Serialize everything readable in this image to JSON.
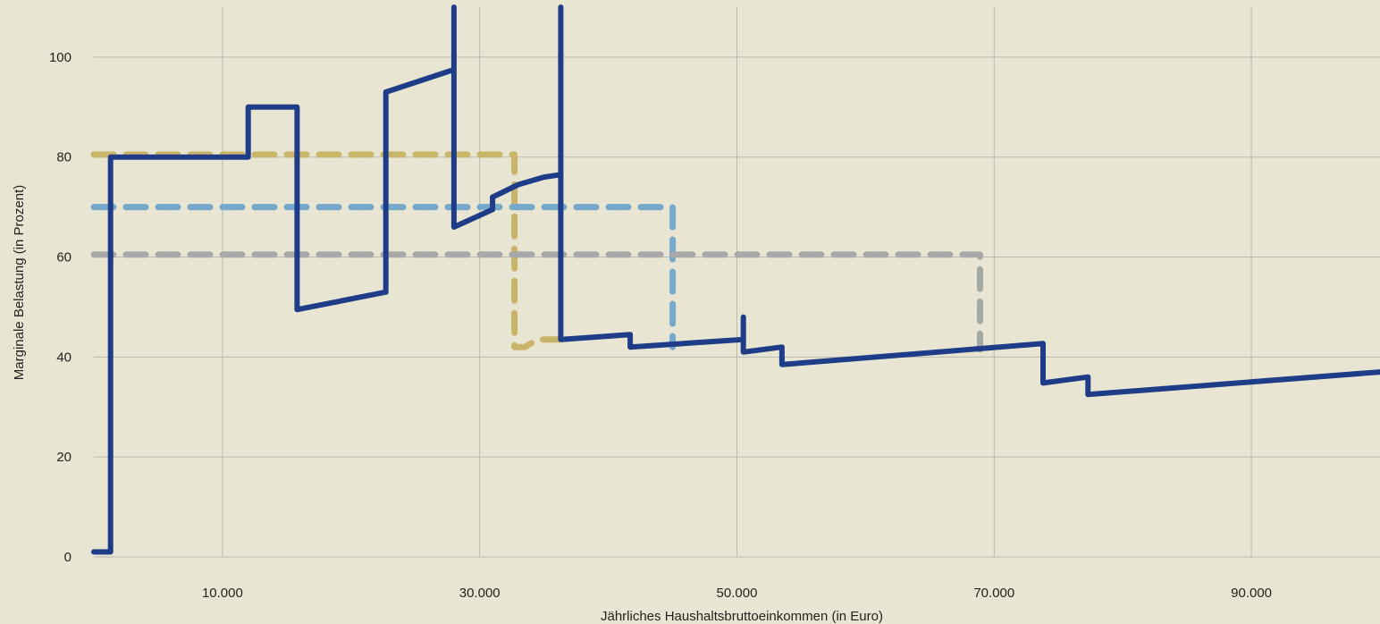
{
  "chart_data": {
    "type": "line",
    "xlabel": "Jährliches Haushaltsbruttoeinkommen (in Euro)",
    "ylabel": "Marginale Belastung (in Prozent)",
    "xlim": [
      0,
      100000
    ],
    "ylim": [
      0,
      110
    ],
    "x_ticks": [
      10000,
      30000,
      50000,
      70000,
      90000
    ],
    "x_tick_labels": [
      "10.000",
      "30.000",
      "50.000",
      "70.000",
      "90.000"
    ],
    "y_ticks": [
      0,
      20,
      40,
      60,
      80,
      100
    ],
    "y_tick_labels": [
      "0",
      "20",
      "40",
      "60",
      "80",
      "100"
    ],
    "grid": true,
    "series": [
      {
        "color": "#c9b56a",
        "dashed": true,
        "points": [
          [
            0,
            80.5
          ],
          [
            32700,
            80.5
          ],
          [
            32700,
            42
          ],
          [
            33500,
            42
          ],
          [
            34500,
            43.5
          ],
          [
            36300,
            43.5
          ]
        ]
      },
      {
        "color": "#76a9cc",
        "dashed": true,
        "points": [
          [
            0,
            70
          ],
          [
            45000,
            70
          ],
          [
            45000,
            42
          ]
        ]
      },
      {
        "color": "#a8a8a8",
        "dashed": true,
        "points": [
          [
            0,
            60.5
          ],
          [
            68900,
            60.5
          ],
          [
            68900,
            41.5
          ]
        ]
      },
      {
        "color": "#1f3c88",
        "dashed": false,
        "points": [
          [
            0,
            1
          ],
          [
            1300,
            1
          ],
          [
            1300,
            80
          ],
          [
            12000,
            80
          ],
          [
            12000,
            90
          ],
          [
            15800,
            90
          ],
          [
            15800,
            49.5
          ],
          [
            22700,
            53
          ],
          [
            22700,
            93
          ],
          [
            28000,
            97.5
          ],
          [
            28000,
            115
          ],
          [
            28000,
            66
          ],
          [
            31000,
            69.5
          ],
          [
            31000,
            72
          ],
          [
            33000,
            74.5
          ],
          [
            35000,
            76
          ],
          [
            36300,
            76.5
          ],
          [
            36300,
            115
          ],
          [
            36300,
            43.5
          ],
          [
            41700,
            44.5
          ],
          [
            41700,
            42
          ],
          [
            50500,
            43.5
          ],
          [
            50500,
            48
          ],
          [
            50500,
            41
          ],
          [
            53500,
            42
          ],
          [
            53500,
            38.5
          ],
          [
            73800,
            42.7
          ],
          [
            73800,
            34.8
          ],
          [
            77300,
            36
          ],
          [
            77300,
            32.5
          ],
          [
            100000,
            37
          ]
        ]
      }
    ]
  }
}
